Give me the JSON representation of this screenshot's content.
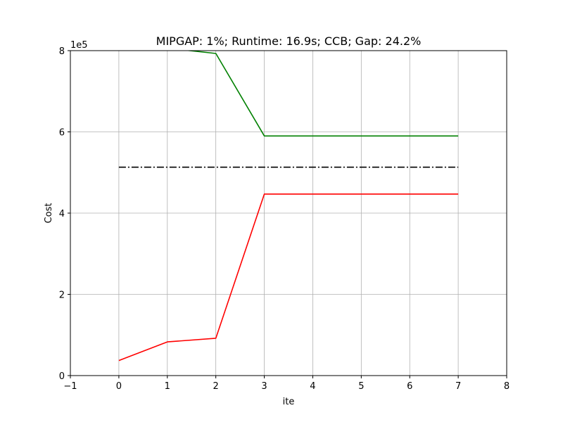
{
  "chart_data": {
    "type": "line",
    "title": "MIPGAP: 1%; Runtime: 16.9s; CCB; Gap: 24.2%",
    "xlabel": "ite",
    "ylabel": "Cost",
    "y_scale_label": "1e5",
    "xlim": [
      -1,
      8
    ],
    "ylim": [
      0,
      800000
    ],
    "x_ticks": [
      -1,
      0,
      1,
      2,
      3,
      4,
      5,
      6,
      7,
      8
    ],
    "x_tick_labels": [
      "−1",
      "0",
      "1",
      "2",
      "3",
      "4",
      "5",
      "6",
      "7",
      "8"
    ],
    "y_ticks": [
      0,
      200000,
      400000,
      600000,
      800000
    ],
    "y_tick_labels": [
      "0",
      "2",
      "4",
      "6",
      "8"
    ],
    "grid": true,
    "series": [
      {
        "color": "#008000",
        "line_style": "solid",
        "x": [
          0,
          1,
          2,
          3,
          4,
          5,
          6,
          7
        ],
        "values": [
          840000,
          806000,
          793000,
          590000,
          590000,
          590000,
          590000,
          590000
        ]
      },
      {
        "color": "#ff0000",
        "line_style": "solid",
        "x": [
          0,
          1,
          2,
          3,
          4,
          5,
          6,
          7
        ],
        "values": [
          37000,
          83000,
          92000,
          447000,
          447000,
          447000,
          447000,
          447000
        ]
      },
      {
        "color": "#000000",
        "line_style": "dashdot",
        "x": [
          0,
          7
        ],
        "values": [
          513000,
          513000
        ]
      }
    ]
  }
}
